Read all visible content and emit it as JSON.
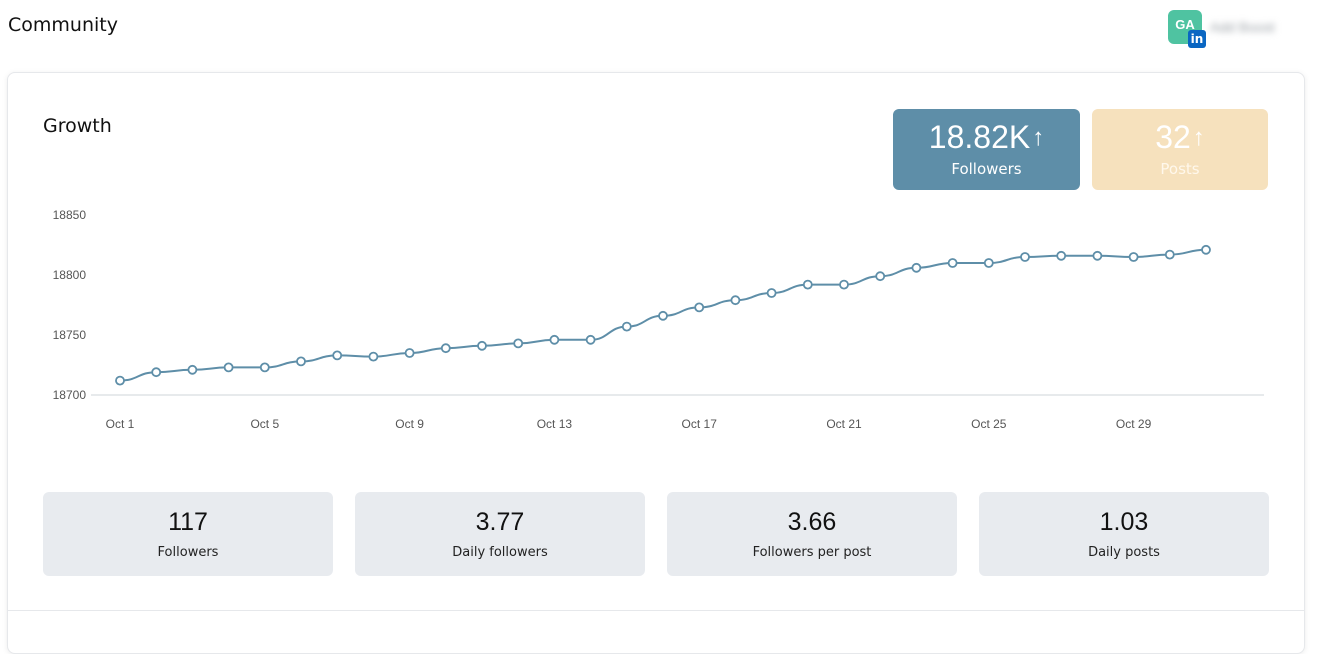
{
  "header": {
    "title": "Community",
    "avatar_initials": "GA",
    "network_badge": "in",
    "account_name": "Add Boost"
  },
  "growth": {
    "title": "Growth",
    "kpis": [
      {
        "value": "18.82K",
        "arrow": "↑",
        "label": "Followers",
        "color": "#5e8ea8"
      },
      {
        "value": "32",
        "arrow": "↑",
        "label": "Posts",
        "color": "#f6e1bd"
      }
    ],
    "stats": [
      {
        "value": "117",
        "label": "Followers"
      },
      {
        "value": "3.77",
        "label": "Daily followers"
      },
      {
        "value": "3.66",
        "label": "Followers per post"
      },
      {
        "value": "1.03",
        "label": "Daily posts"
      }
    ]
  },
  "chart_data": {
    "type": "line",
    "ylim": [
      18700,
      18850
    ],
    "yticks": [
      "18850",
      "18800",
      "18750",
      "18700"
    ],
    "xtick_labels": [
      "Oct 1",
      "Oct 5",
      "Oct 9",
      "Oct 13",
      "Oct 17",
      "Oct 21",
      "Oct 25",
      "Oct 29"
    ],
    "xtick_days": [
      1,
      5,
      9,
      13,
      17,
      21,
      25,
      29
    ],
    "x": [
      1,
      2,
      3,
      4,
      5,
      6,
      7,
      8,
      9,
      10,
      11,
      12,
      13,
      14,
      15,
      16,
      17,
      18,
      19,
      20,
      21,
      22,
      23,
      24,
      25,
      26,
      27,
      28,
      29,
      30,
      31
    ],
    "series": [
      {
        "color": "#5e8ea8",
        "values": [
          18712,
          18719,
          18721,
          18723,
          18723,
          18728,
          18733,
          18732,
          18735,
          18739,
          18741,
          18743,
          18746,
          18746,
          18757,
          18766,
          18773,
          18779,
          18785,
          18792,
          18792,
          18799,
          18806,
          18810,
          18810,
          18815,
          18816,
          18816,
          18815,
          18817,
          18821
        ]
      }
    ],
    "grid": false,
    "legend": "none"
  }
}
